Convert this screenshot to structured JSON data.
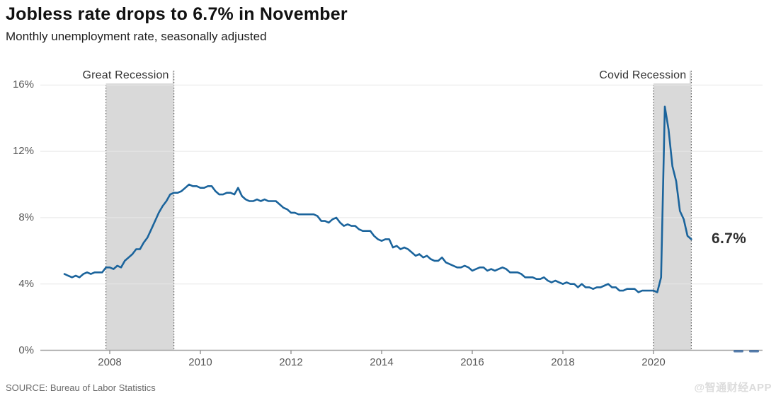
{
  "header": {
    "title": "Jobless rate drops to 6.7% in November",
    "subtitle": "Monthly unemployment rate, seasonally adjusted"
  },
  "footer": {
    "source": "SOURCE: Bureau of Labor Statistics",
    "watermark": "@智通财经APP"
  },
  "colors": {
    "line": "#1b649c",
    "band_fill": "#d9d9d9",
    "band_border": "#3f3f3f",
    "grid": "#e7e7e7",
    "axis": "#a3a3a3",
    "tick": "#8a8a8a",
    "stray_dash": "#39679e"
  },
  "chart_data": {
    "type": "line",
    "title": "Jobless rate drops to 6.7% in November",
    "subtitle": "Monthly unemployment rate, seasonally adjusted",
    "unit": "%",
    "start_month": "2007-01",
    "end_month": "2020-11",
    "ylim": [
      0,
      16
    ],
    "grid": true,
    "y_tick_values": [
      0,
      4,
      8,
      12,
      16
    ],
    "y_ticks": [
      "0%",
      "4%",
      "8%",
      "12%",
      "16%"
    ],
    "x_ticks": [
      2008,
      2010,
      2012,
      2014,
      2016,
      2018,
      2020
    ],
    "bands": [
      {
        "label": "Great Recession",
        "start": "2007-12",
        "end": "2009-06"
      },
      {
        "label": "Covid Recession",
        "start": "2020-01",
        "end": "2020-11"
      }
    ],
    "annotation": {
      "text": "6.7%",
      "month": "2020-11",
      "value": 6.7
    },
    "series": [
      {
        "name": "Unemployment rate, seasonally adjusted",
        "color": "#1b649c",
        "values": [
          4.6,
          4.5,
          4.4,
          4.5,
          4.4,
          4.6,
          4.7,
          4.6,
          4.7,
          4.7,
          4.7,
          5.0,
          5.0,
          4.9,
          5.1,
          5.0,
          5.4,
          5.6,
          5.8,
          6.1,
          6.1,
          6.5,
          6.8,
          7.3,
          7.8,
          8.3,
          8.7,
          9.0,
          9.4,
          9.5,
          9.5,
          9.6,
          9.8,
          10.0,
          9.9,
          9.9,
          9.8,
          9.8,
          9.9,
          9.9,
          9.6,
          9.4,
          9.4,
          9.5,
          9.5,
          9.4,
          9.8,
          9.3,
          9.1,
          9.0,
          9.0,
          9.1,
          9.0,
          9.1,
          9.0,
          9.0,
          9.0,
          8.8,
          8.6,
          8.5,
          8.3,
          8.3,
          8.2,
          8.2,
          8.2,
          8.2,
          8.2,
          8.1,
          7.8,
          7.8,
          7.7,
          7.9,
          8.0,
          7.7,
          7.5,
          7.6,
          7.5,
          7.5,
          7.3,
          7.2,
          7.2,
          7.2,
          6.9,
          6.7,
          6.6,
          6.7,
          6.7,
          6.2,
          6.3,
          6.1,
          6.2,
          6.1,
          5.9,
          5.7,
          5.8,
          5.6,
          5.7,
          5.5,
          5.4,
          5.4,
          5.6,
          5.3,
          5.2,
          5.1,
          5.0,
          5.0,
          5.1,
          5.0,
          4.8,
          4.9,
          5.0,
          5.0,
          4.8,
          4.9,
          4.8,
          4.9,
          5.0,
          4.9,
          4.7,
          4.7,
          4.7,
          4.6,
          4.4,
          4.4,
          4.4,
          4.3,
          4.3,
          4.4,
          4.2,
          4.1,
          4.2,
          4.1,
          4.0,
          4.1,
          4.0,
          4.0,
          3.8,
          4.0,
          3.8,
          3.8,
          3.7,
          3.8,
          3.8,
          3.9,
          4.0,
          3.8,
          3.8,
          3.6,
          3.6,
          3.7,
          3.7,
          3.7,
          3.5,
          3.6,
          3.6,
          3.6,
          3.6,
          3.5,
          4.4,
          14.7,
          13.3,
          11.1,
          10.2,
          8.4,
          7.9,
          6.9,
          6.7
        ]
      }
    ]
  }
}
